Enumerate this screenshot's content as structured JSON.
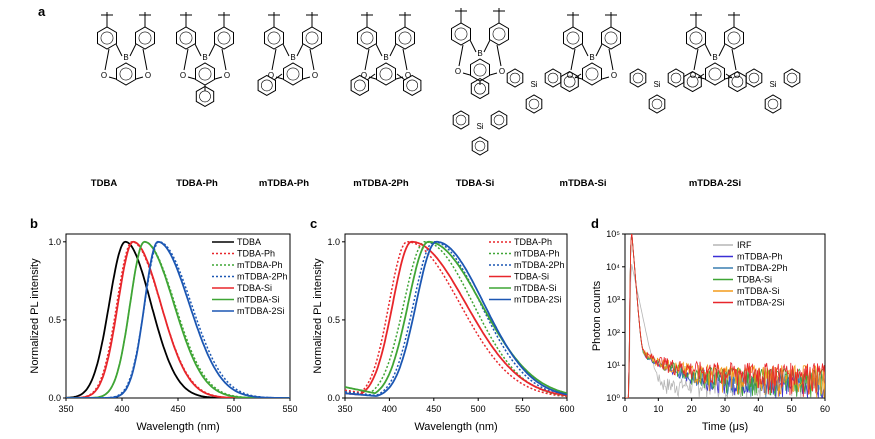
{
  "panel_labels": {
    "a": "a",
    "b": "b",
    "c": "c",
    "d": "d"
  },
  "molecules": [
    "TDBA",
    "TDBA-Ph",
    "mTDBA-Ph",
    "mTDBA-2Ph",
    "TDBA-Si",
    "mTDBA-Si",
    "mTDBA-2Si"
  ],
  "atoms": {
    "boron": "B",
    "oxygen": "O",
    "silicon": "Si"
  },
  "colors": {
    "TDBA": "#000000",
    "TDBA-Ph": "#e8262b",
    "mTDBA-Ph": "#3fa535",
    "mTDBA-2Ph": "#1c57b3",
    "TDBA-Si": "#e8262b",
    "mTDBA-Si": "#3fa535",
    "mTDBA-2Si": "#1c57b3",
    "IRF": "#b5b5b5",
    "mTDBA-Ph_d": "#3a2fd6",
    "mTDBA-2Ph_d": "#3a7fb0",
    "TDBA-Si_d": "#3fa535",
    "mTDBA-Si_d": "#f39c1b",
    "mTDBA-2Si_d": "#e8262b"
  },
  "chart_data": [
    {
      "type": "line",
      "panel": "b",
      "xlabel": "Wavelength (nm)",
      "ylabel": "Normalized PL intensity",
      "xlim": [
        350,
        550
      ],
      "ylim": [
        0,
        1.05
      ],
      "xticks": [
        "350",
        "400",
        "450",
        "500",
        "550"
      ],
      "yticks": [
        "0.0",
        "0.5",
        "1.0"
      ],
      "legend_position": "top-right",
      "series": [
        {
          "name": "TDBA",
          "style": "solid",
          "peak": 403,
          "wl": 17,
          "wr": 27
        },
        {
          "name": "TDBA-Ph",
          "style": "dotted",
          "peak": 409,
          "wl": 16,
          "wr": 30
        },
        {
          "name": "mTDBA-Ph",
          "style": "dotted",
          "peak": 420,
          "wl": 15,
          "wr": 32
        },
        {
          "name": "mTDBA-2Ph",
          "style": "dotted",
          "peak": 433,
          "wl": 15,
          "wr": 34
        },
        {
          "name": "TDBA-Si",
          "style": "solid",
          "peak": 410,
          "wl": 16,
          "wr": 29
        },
        {
          "name": "mTDBA-Si",
          "style": "solid",
          "peak": 420,
          "wl": 15,
          "wr": 31
        },
        {
          "name": "mTDBA-2Si",
          "style": "solid",
          "peak": 432,
          "wl": 14,
          "wr": 33
        }
      ]
    },
    {
      "type": "line",
      "panel": "c",
      "xlabel": "Wavelength (nm)",
      "ylabel": "Normalized PL intensity",
      "xlim": [
        350,
        600
      ],
      "ylim": [
        0,
        1.05
      ],
      "xticks": [
        "350",
        "400",
        "450",
        "500",
        "550",
        "600"
      ],
      "yticks": [
        "0.0",
        "0.5",
        "1.0"
      ],
      "legend_position": "top-right",
      "series": [
        {
          "name": "TDBA-Ph",
          "style": "dotted",
          "peak": 420,
          "wl": 24,
          "wr": 70,
          "base": 0.05
        },
        {
          "name": "mTDBA-Ph",
          "style": "dotted",
          "peak": 440,
          "wl": 28,
          "wr": 64,
          "base": 0.07
        },
        {
          "name": "mTDBA-2Ph",
          "style": "dotted",
          "peak": 450,
          "wl": 27,
          "wr": 62,
          "base": 0.04
        },
        {
          "name": "TDBA-Si",
          "style": "solid",
          "peak": 425,
          "wl": 25,
          "wr": 72,
          "base": 0.03
        },
        {
          "name": "mTDBA-Si",
          "style": "solid",
          "peak": 444,
          "wl": 27,
          "wr": 70,
          "base": 0.07
        },
        {
          "name": "mTDBA-2Si",
          "style": "solid",
          "peak": 453,
          "wl": 27,
          "wr": 63,
          "base": 0.03
        }
      ]
    },
    {
      "type": "line",
      "panel": "d",
      "xlabel": "Time (μs)",
      "ylabel": "Photon counts",
      "yscale": "log",
      "xlim": [
        0,
        60
      ],
      "ylim": [
        1,
        100000
      ],
      "xticks": [
        "0",
        "10",
        "20",
        "30",
        "40",
        "50",
        "60"
      ],
      "yticks": [
        "10⁰",
        "10¹",
        "10²",
        "10³",
        "10⁴",
        "10⁵"
      ],
      "legend_position": "top-right",
      "series": [
        {
          "name": "IRF",
          "peak_time": 2,
          "peak_counts": 12000,
          "tail_level": 1
        },
        {
          "name": "mTDBA-Ph",
          "peak_time": 2,
          "peak_counts": 120000,
          "tail_level": 2
        },
        {
          "name": "mTDBA-2Ph",
          "peak_time": 2,
          "peak_counts": 120000,
          "tail_level": 3
        },
        {
          "name": "TDBA-Si",
          "peak_time": 2,
          "peak_counts": 120000,
          "tail_level": 4
        },
        {
          "name": "mTDBA-Si",
          "peak_time": 2,
          "peak_counts": 120000,
          "tail_level": 5
        },
        {
          "name": "mTDBA-2Si",
          "peak_time": 2,
          "peak_counts": 120000,
          "tail_level": 6
        }
      ]
    }
  ]
}
